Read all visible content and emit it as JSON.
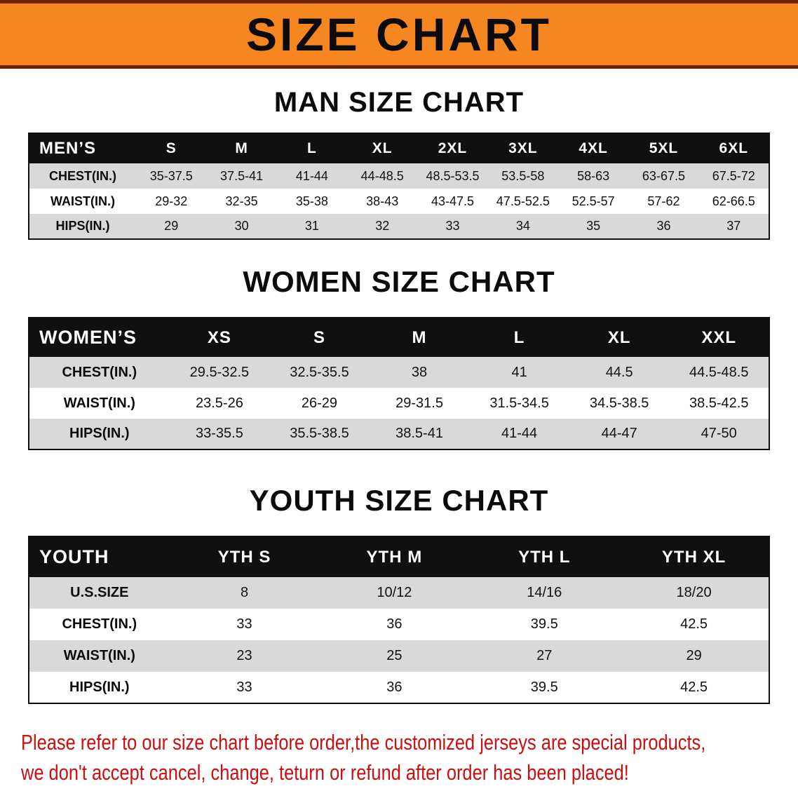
{
  "banner": {
    "title": "SIZE CHART"
  },
  "colors": {
    "banner_orange": "#f6861f",
    "banner_border": "#6f2205",
    "header_black": "#101010",
    "row_gray": "#d9d9d9",
    "disclaimer_red": "#cb0f0f"
  },
  "sections": [
    {
      "id": "men",
      "heading": "MAN SIZE CHART",
      "table": {
        "header": [
          "MEN’S",
          "S",
          "M",
          "L",
          "XL",
          "2XL",
          "3XL",
          "4XL",
          "5XL",
          "6XL"
        ],
        "rows": [
          [
            "CHEST(IN.)",
            "35-37.5",
            "37.5-41",
            "41-44",
            "44-48.5",
            "48.5-53.5",
            "53.5-58",
            "58-63",
            "63-67.5",
            "67.5-72"
          ],
          [
            "WAIST(IN.)",
            "29-32",
            "32-35",
            "35-38",
            "38-43",
            "43-47.5",
            "47.5-52.5",
            "52.5-57",
            "57-62",
            "62-66.5"
          ],
          [
            "HIPS(IN.)",
            "29",
            "30",
            "31",
            "32",
            "33",
            "34",
            "35",
            "36",
            "37"
          ]
        ]
      }
    },
    {
      "id": "women",
      "heading": "WOMEN SIZE CHART",
      "table": {
        "header": [
          "WOMEN’S",
          "XS",
          "S",
          "M",
          "L",
          "XL",
          "XXL"
        ],
        "rows": [
          [
            "CHEST(IN.)",
            "29.5-32.5",
            "32.5-35.5",
            "38",
            "41",
            "44.5",
            "44.5-48.5"
          ],
          [
            "WAIST(IN.)",
            "23.5-26",
            "26-29",
            "29-31.5",
            "31.5-34.5",
            "34.5-38.5",
            "38.5-42.5"
          ],
          [
            "HIPS(IN.)",
            "33-35.5",
            "35.5-38.5",
            "38.5-41",
            "41-44",
            "44-47",
            "47-50"
          ]
        ]
      }
    },
    {
      "id": "youth",
      "heading": "YOUTH SIZE CHART",
      "table": {
        "header": [
          "YOUTH",
          "YTH S",
          "YTH M",
          "YTH L",
          "YTH XL"
        ],
        "rows": [
          [
            "U.S.SIZE",
            "8",
            "10/12",
            "14/16",
            "18/20"
          ],
          [
            "CHEST(IN.)",
            "33",
            "36",
            "39.5",
            "42.5"
          ],
          [
            "WAIST(IN.)",
            "23",
            "25",
            "27",
            "29"
          ],
          [
            "HIPS(IN.)",
            "33",
            "36",
            "39.5",
            "42.5"
          ]
        ]
      }
    }
  ],
  "disclaimer": {
    "line1": "Please refer to our size chart before order,the customized jerseys are special products,",
    "line2": "we don't accept cancel, change, teturn or refund after order has been placed!"
  }
}
